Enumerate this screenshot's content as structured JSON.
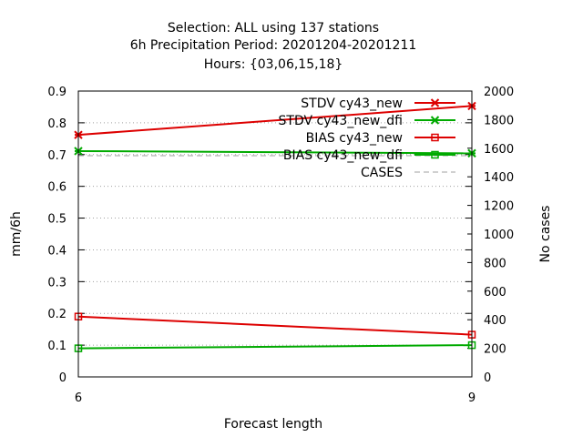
{
  "chart_data": {
    "type": "line",
    "title_lines": [
      "Selection: ALL using   137 stations",
      "6h Precipitation   Period: 20201204-20201211",
      "Hours: {03,06,15,18}"
    ],
    "xlabel": "Forecast length",
    "ylabel": "mm/6h",
    "y2label": "No cases",
    "x": [
      6,
      9
    ],
    "xlim": [
      6,
      9
    ],
    "ylim": [
      0,
      0.9
    ],
    "y2lim": [
      0,
      2000
    ],
    "xticks": [
      "6",
      "9"
    ],
    "yticks": [
      "0",
      "0.1",
      "0.2",
      "0.3",
      "0.4",
      "0.5",
      "0.6",
      "0.7",
      "0.8",
      "0.9"
    ],
    "y2ticks": [
      "0",
      "200",
      "400",
      "600",
      "800",
      "1000",
      "1200",
      "1400",
      "1600",
      "1800",
      "2000"
    ],
    "grid": true,
    "legend_position": "top-right",
    "series": [
      {
        "name": "STDV cy43_new",
        "axis": "y",
        "color": "#dd0000",
        "marker": "x-star",
        "values": [
          0.762,
          0.853
        ]
      },
      {
        "name": "STDV cy43_new_dfi",
        "axis": "y",
        "color": "#00aa00",
        "marker": "x-star",
        "values": [
          0.711,
          0.704
        ]
      },
      {
        "name": "BIAS cy43_new",
        "axis": "y",
        "color": "#dd0000",
        "marker": "square",
        "values": [
          0.19,
          0.133
        ]
      },
      {
        "name": "BIAS cy43_new_dfi",
        "axis": "y",
        "color": "#00aa00",
        "marker": "square",
        "values": [
          0.09,
          0.1
        ]
      },
      {
        "name": "CASES",
        "axis": "y2",
        "color": "#a0a0a0",
        "marker": "none",
        "dashed": true,
        "values": [
          1548,
          1548
        ]
      }
    ]
  }
}
